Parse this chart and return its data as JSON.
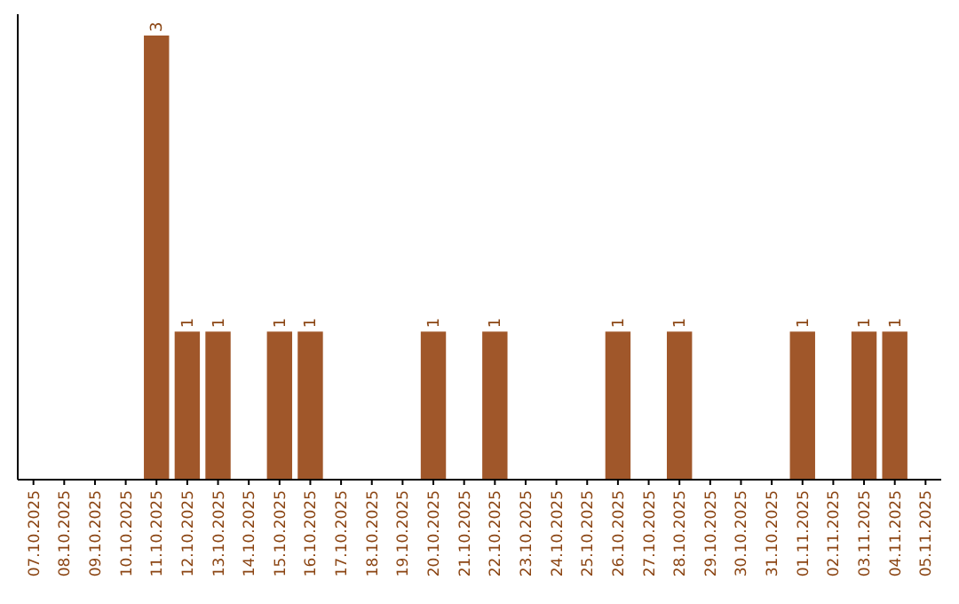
{
  "chart_data": {
    "type": "bar",
    "categories": [
      "07.10.2025",
      "08.10.2025",
      "09.10.2025",
      "10.10.2025",
      "11.10.2025",
      "12.10.2025",
      "13.10.2025",
      "14.10.2025",
      "15.10.2025",
      "16.10.2025",
      "17.10.2025",
      "18.10.2025",
      "19.10.2025",
      "20.10.2025",
      "21.10.2025",
      "22.10.2025",
      "23.10.2025",
      "24.10.2025",
      "25.10.2025",
      "26.10.2025",
      "27.10.2025",
      "28.10.2025",
      "29.10.2025",
      "30.10.2025",
      "31.10.2025",
      "01.11.2025",
      "02.11.2025",
      "03.11.2025",
      "04.11.2025",
      "05.11.2025"
    ],
    "values": [
      0,
      0,
      0,
      0,
      3,
      1,
      1,
      0,
      1,
      1,
      0,
      0,
      0,
      1,
      0,
      1,
      0,
      0,
      0,
      1,
      0,
      1,
      0,
      0,
      0,
      1,
      0,
      1,
      1,
      0
    ],
    "value_labels": [
      null,
      null,
      null,
      null,
      "3",
      "1",
      "1",
      null,
      "1",
      "1",
      null,
      null,
      null,
      "1",
      null,
      "1",
      null,
      null,
      null,
      "1",
      null,
      "1",
      null,
      null,
      null,
      "1",
      null,
      "1",
      "1",
      null
    ],
    "color": "#a0572a",
    "grid": false
  }
}
